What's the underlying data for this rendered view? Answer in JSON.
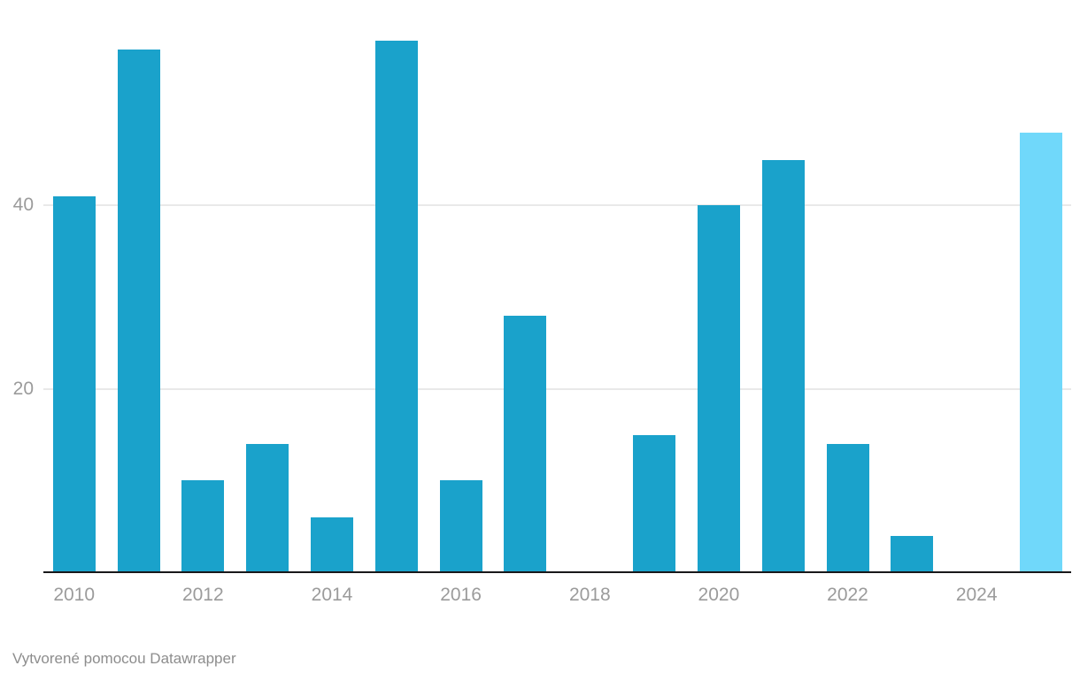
{
  "chart_data": {
    "type": "bar",
    "categories": [
      "2010",
      "2011",
      "2012",
      "2013",
      "2014",
      "2015",
      "2016",
      "2017",
      "2018",
      "2019",
      "2020",
      "2021",
      "2022",
      "2023",
      "2024",
      "2025"
    ],
    "values": [
      41,
      57,
      10,
      14,
      6,
      58,
      10,
      28,
      0,
      15,
      40,
      45,
      14,
      4,
      0,
      48
    ],
    "highlight_category": "2025",
    "title": "",
    "xlabel": "",
    "ylabel": "",
    "ylim": [
      0,
      62
    ],
    "yticks": [
      20,
      40
    ],
    "xticks": [
      "2010",
      "2012",
      "2014",
      "2016",
      "2018",
      "2020",
      "2022",
      "2024"
    ],
    "grid": "horizontal-only",
    "legend": "none",
    "bar_color": "#1aa2cb",
    "highlight_color": "#70d8fa",
    "gridline_color": "#e9e9e9",
    "axis_line_color": "#18181a",
    "tick_label_color": "#9b9b9b"
  },
  "footer": {
    "prefix": "Vytvorené pomocou ",
    "link_label": "Datawrapper",
    "full_text": "Vytvorené pomocou Datawrapper"
  }
}
